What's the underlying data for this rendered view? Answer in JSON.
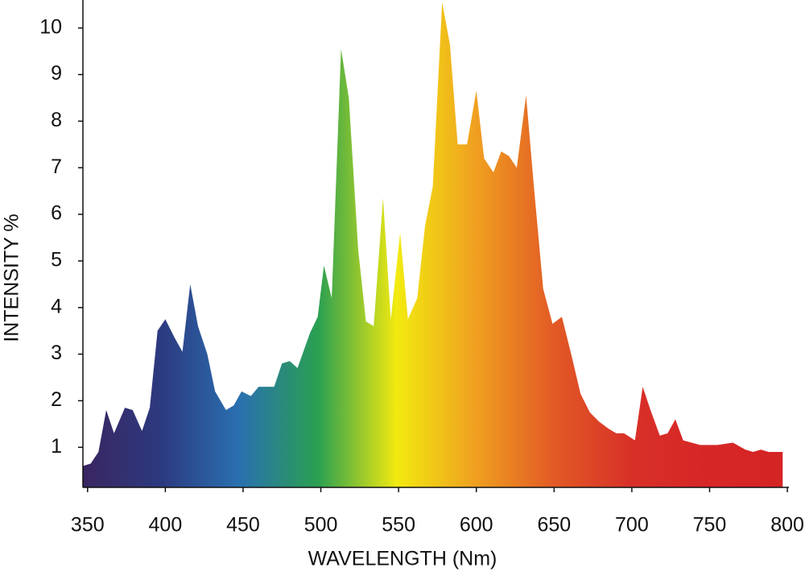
{
  "chart_data": {
    "type": "area",
    "x_label": "WAVELENGTH (Nm)",
    "y_label": "INTENSITY %",
    "xlim": [
      347,
      801
    ],
    "ylim": [
      0.14,
      10.6
    ],
    "xticks": [
      350,
      400,
      450,
      500,
      550,
      600,
      650,
      700,
      750,
      800
    ],
    "yticks": [
      1,
      2,
      3,
      4,
      5,
      6,
      7,
      8,
      9,
      10
    ],
    "colors": [
      "#3a2560",
      "#2c3a80",
      "#2a70b0",
      "#2aa050",
      "#f2ea10",
      "#f0a020",
      "#e25a25",
      "#d83028",
      "#d62626",
      "#d42424"
    ],
    "x": [
      347,
      352,
      357,
      362,
      367,
      374,
      379,
      385,
      390,
      395,
      400,
      406,
      411,
      416,
      421,
      427,
      432,
      439,
      444,
      449,
      455,
      460,
      470,
      475,
      480,
      485,
      493,
      498,
      502,
      507,
      513,
      518,
      524,
      529,
      534,
      540,
      545,
      551,
      556,
      562,
      567,
      572,
      578,
      583,
      588,
      594,
      600,
      605,
      611,
      616,
      621,
      626,
      632,
      637,
      643,
      649,
      655,
      661,
      667,
      673,
      679,
      685,
      690,
      695,
      702,
      707,
      712,
      718,
      723,
      728,
      733,
      744,
      750,
      755,
      765,
      773,
      778,
      783,
      788,
      797
    ],
    "values": [
      0.6,
      0.65,
      0.9,
      1.8,
      1.3,
      1.85,
      1.8,
      1.35,
      1.85,
      3.5,
      3.75,
      3.35,
      3.05,
      4.5,
      3.6,
      3.0,
      2.2,
      1.8,
      1.9,
      2.2,
      2.1,
      2.3,
      2.3,
      2.8,
      2.85,
      2.7,
      3.45,
      3.8,
      4.9,
      4.2,
      9.55,
      8.5,
      5.25,
      3.7,
      3.6,
      6.35,
      3.75,
      5.6,
      3.75,
      4.2,
      5.75,
      6.6,
      10.55,
      9.65,
      7.5,
      7.5,
      8.65,
      7.2,
      6.9,
      7.35,
      7.25,
      7.0,
      8.55,
      6.6,
      4.4,
      3.65,
      3.8,
      3.0,
      2.15,
      1.75,
      1.55,
      1.4,
      1.3,
      1.3,
      1.15,
      2.3,
      1.8,
      1.25,
      1.3,
      1.6,
      1.15,
      1.05,
      1.05,
      1.05,
      1.1,
      0.95,
      0.9,
      0.95,
      0.9,
      0.9
    ]
  }
}
